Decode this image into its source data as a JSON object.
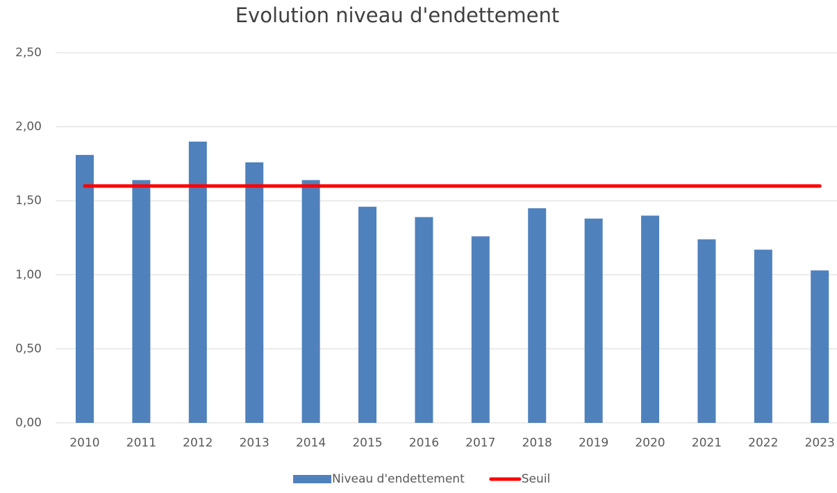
{
  "chart_data": {
    "type": "bar-line",
    "title": "Evolution niveau d'endettement",
    "categories": [
      "2010",
      "2011",
      "2012",
      "2013",
      "2014",
      "2015",
      "2016",
      "2017",
      "2018",
      "2019",
      "2020",
      "2021",
      "2022",
      "2023"
    ],
    "series": [
      {
        "name": "Niveau d'endettement",
        "type": "bar",
        "color": "#4f81bd",
        "values": [
          1.81,
          1.64,
          1.9,
          1.76,
          1.64,
          1.46,
          1.39,
          1.26,
          1.45,
          1.38,
          1.4,
          1.24,
          1.17,
          1.03
        ]
      },
      {
        "name": "Seuil",
        "type": "line",
        "color": "#ff0000",
        "values": [
          1.6,
          1.6,
          1.6,
          1.6,
          1.6,
          1.6,
          1.6,
          1.6,
          1.6,
          1.6,
          1.6,
          1.6,
          1.6,
          1.6
        ]
      }
    ],
    "ylim": [
      0,
      2.5
    ],
    "yticks": [
      {
        "value": 0,
        "label": "0,00"
      },
      {
        "value": 0.5,
        "label": "0,50"
      },
      {
        "value": 1,
        "label": "1,00"
      },
      {
        "value": 1.5,
        "label": "1,50"
      },
      {
        "value": 2,
        "label": "2,00"
      },
      {
        "value": 2.5,
        "label": "2,50"
      }
    ],
    "grid": true,
    "legend": "bottom"
  }
}
